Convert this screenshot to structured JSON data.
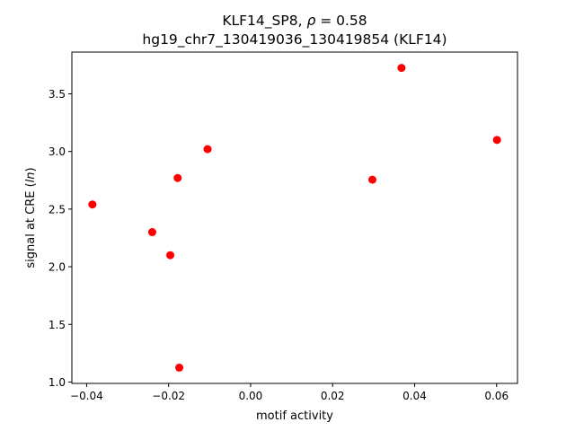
{
  "chart_data": {
    "type": "scatter",
    "title_line1_prefix": "KLF14_SP8, ",
    "title_line1_rho": "ρ",
    "title_line1_suffix": " = 0.58",
    "title_line2": "hg19_chr7_130419036_130419854 (KLF14)",
    "xlabel": "motif activity",
    "ylabel_prefix": "signal at CRE (",
    "ylabel_italic": "ln",
    "ylabel_suffix": ")",
    "xlim": [
      -0.0436,
      0.0651
    ],
    "ylim": [
      0.988,
      3.862
    ],
    "xticks": [
      -0.04,
      -0.02,
      0.0,
      0.02,
      0.04,
      0.06
    ],
    "xtick_labels": [
      "−0.04",
      "−0.02",
      "0.00",
      "0.02",
      "0.04",
      "0.06"
    ],
    "yticks": [
      1.0,
      1.5,
      2.0,
      2.5,
      3.0,
      3.5
    ],
    "ytick_labels": [
      "1.0",
      "1.5",
      "2.0",
      "2.5",
      "3.0",
      "3.5"
    ],
    "marker_color": "#ff0000",
    "points": [
      {
        "x": -0.0386,
        "y": 2.54
      },
      {
        "x": -0.024,
        "y": 2.3
      },
      {
        "x": -0.0196,
        "y": 2.1
      },
      {
        "x": -0.0178,
        "y": 2.77
      },
      {
        "x": -0.0174,
        "y": 1.125
      },
      {
        "x": -0.0105,
        "y": 3.02
      },
      {
        "x": 0.0297,
        "y": 2.755
      },
      {
        "x": 0.0368,
        "y": 3.725
      },
      {
        "x": 0.0601,
        "y": 3.1
      }
    ]
  }
}
